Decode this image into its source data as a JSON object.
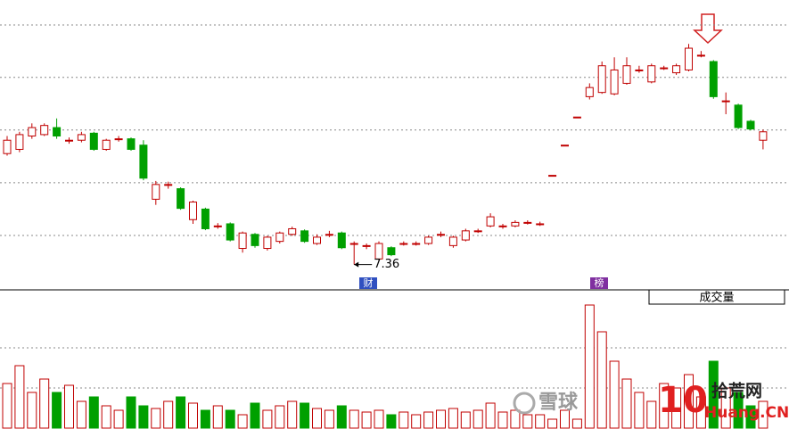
{
  "chart_data": {
    "type": "candlestick",
    "open": [
      8.94,
      9.0,
      9.19,
      9.21,
      9.31,
      9.13,
      9.13,
      9.23,
      9.0,
      9.15,
      9.15,
      9.06,
      8.29,
      8.5,
      8.44,
      8.0,
      8.15,
      7.91,
      7.94,
      7.59,
      7.79,
      7.59,
      7.69,
      7.79,
      7.84,
      7.66,
      7.79,
      7.81,
      7.66,
      7.63,
      7.44,
      7.6,
      7.66,
      7.66,
      7.66,
      7.79,
      7.63,
      7.71,
      7.84,
      7.91,
      7.91,
      7.91,
      7.96,
      7.94,
      8.63,
      9.06,
      9.46,
      9.75,
      9.81,
      9.79,
      9.94,
      10.13,
      9.96,
      10.16,
      10.09,
      10.13,
      10.34,
      10.25,
      9.69,
      9.63,
      9.4,
      9.13
    ],
    "close": [
      9.13,
      9.21,
      9.31,
      9.34,
      9.19,
      9.13,
      9.21,
      9.0,
      9.13,
      9.15,
      9.0,
      8.59,
      8.5,
      8.5,
      8.16,
      8.25,
      7.87,
      7.91,
      7.71,
      7.81,
      7.63,
      7.75,
      7.81,
      7.87,
      7.69,
      7.75,
      7.79,
      7.6,
      7.66,
      7.63,
      7.66,
      7.5,
      7.66,
      7.66,
      7.75,
      7.79,
      7.75,
      7.84,
      7.84,
      8.04,
      7.91,
      7.96,
      7.96,
      7.94,
      8.63,
      9.06,
      9.46,
      9.88,
      10.19,
      10.13,
      10.19,
      10.13,
      10.19,
      10.16,
      10.19,
      10.44,
      10.34,
      9.75,
      9.69,
      9.31,
      9.29,
      9.25
    ],
    "high": [
      9.19,
      9.25,
      9.37,
      9.37,
      9.44,
      9.17,
      9.25,
      9.25,
      9.15,
      9.19,
      9.17,
      9.13,
      8.55,
      8.54,
      8.46,
      8.27,
      8.17,
      7.95,
      7.96,
      7.83,
      7.81,
      7.77,
      7.83,
      7.9,
      7.86,
      7.79,
      7.84,
      7.83,
      7.69,
      7.66,
      7.69,
      7.62,
      7.69,
      7.69,
      7.77,
      7.83,
      7.77,
      7.87,
      7.87,
      8.09,
      7.94,
      7.99,
      7.99,
      7.97,
      8.63,
      9.06,
      9.46,
      9.94,
      10.25,
      10.31,
      10.31,
      10.19,
      10.22,
      10.19,
      10.22,
      10.5,
      10.4,
      10.27,
      9.81,
      9.65,
      9.42,
      9.28
    ],
    "low": [
      8.91,
      8.96,
      9.15,
      9.19,
      9.15,
      9.08,
      9.1,
      8.98,
      8.98,
      9.11,
      8.98,
      8.56,
      8.21,
      8.44,
      8.14,
      7.94,
      7.85,
      7.87,
      7.69,
      7.53,
      7.6,
      7.56,
      7.66,
      7.77,
      7.67,
      7.64,
      7.75,
      7.58,
      7.36,
      7.58,
      7.42,
      7.48,
      7.63,
      7.63,
      7.64,
      7.75,
      7.6,
      7.69,
      7.81,
      7.89,
      7.87,
      7.89,
      7.93,
      7.91,
      8.63,
      9.06,
      9.46,
      9.71,
      9.79,
      9.77,
      9.92,
      10.09,
      9.94,
      10.13,
      10.06,
      10.11,
      10.31,
      9.72,
      9.5,
      9.29,
      9.27,
      9.0
    ],
    "volume": [
      50,
      70,
      40,
      55,
      40,
      48,
      30,
      35,
      25,
      20,
      35,
      25,
      22,
      30,
      35,
      28,
      20,
      25,
      20,
      15,
      28,
      20,
      25,
      30,
      28,
      22,
      20,
      25,
      20,
      18,
      20,
      15,
      18,
      15,
      18,
      20,
      22,
      18,
      20,
      28,
      18,
      20,
      15,
      15,
      10,
      20,
      10,
      138,
      108,
      75,
      55,
      40,
      30,
      50,
      45,
      60,
      35,
      75,
      45,
      40,
      25,
      30
    ],
    "up_color": "#c00000",
    "down_color": "#00a000",
    "ylim": [
      7.0,
      11.0625
    ],
    "yticks": [
      10.77,
      10.025,
      9.275,
      8.525,
      7.775
    ],
    "grid": true,
    "volume_ylim": [
      0,
      140
    ],
    "volume_ticks": [
      45,
      90
    ],
    "badges": [
      "财",
      "榜"
    ],
    "volume_title": "成交量",
    "watermark": {
      "left": "雪球",
      "number": "10",
      "site": "拾荒网",
      "domain": "Huang.CN"
    }
  }
}
